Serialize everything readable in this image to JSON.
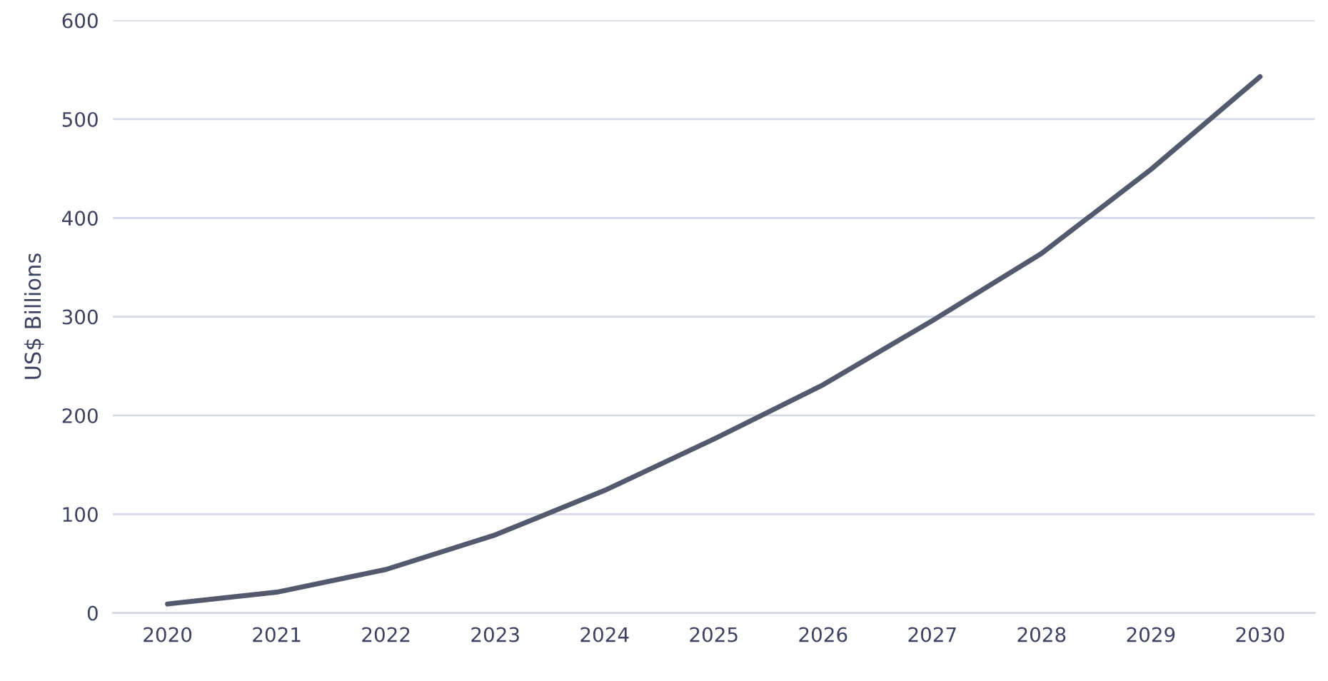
{
  "chart_data": {
    "type": "line",
    "ylabel": "US$ Billions",
    "categories": [
      "2020",
      "2021",
      "2022",
      "2023",
      "2024",
      "2025",
      "2026",
      "2027",
      "2028",
      "2029",
      "2030"
    ],
    "series": [
      {
        "color": "#545a6e",
        "values": [
          9,
          21,
          44,
          79,
          124,
          176,
          231,
          296,
          364,
          449,
          543
        ]
      }
    ],
    "ylim": [
      0,
      600
    ],
    "yticks": [
      0,
      100,
      200,
      300,
      400,
      500,
      600
    ],
    "grid": "y",
    "legend": false,
    "marker": "none",
    "line_style": "solid"
  }
}
